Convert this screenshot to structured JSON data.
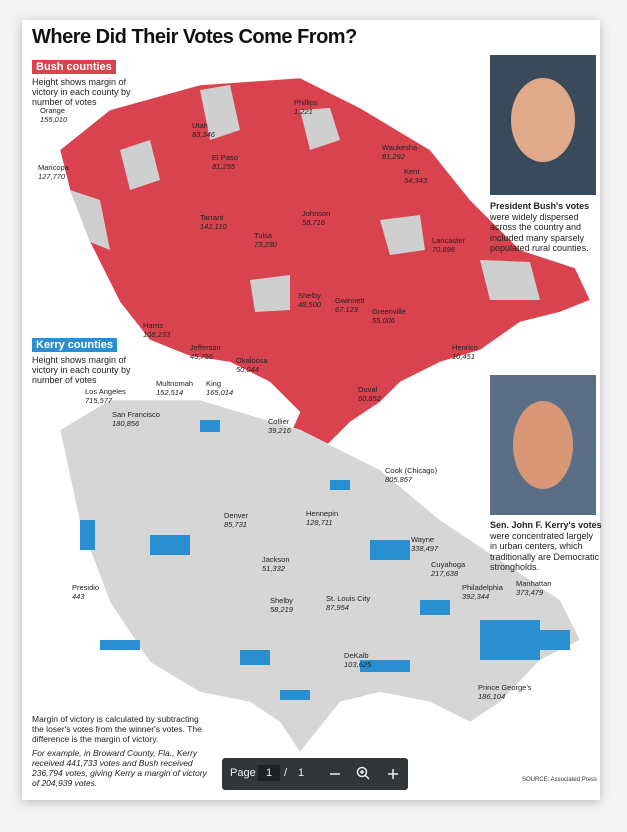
{
  "document": {
    "title": "Where Did Their Votes Come From?",
    "bush": {
      "heading": "Bush counties",
      "description": "Height shows margin of victory in each county by number of votes",
      "labels": [
        {
          "name": "Orange",
          "votes": "155,010"
        },
        {
          "name": "Maricopa",
          "votes": "127,770"
        },
        {
          "name": "Utah",
          "votes": "83,346"
        },
        {
          "name": "El Paso",
          "votes": "81,255"
        },
        {
          "name": "Phillips",
          "votes": "1,221"
        },
        {
          "name": "Waukesha",
          "votes": "81,292"
        },
        {
          "name": "Kent",
          "votes": "54,343"
        },
        {
          "name": "Tarrant",
          "votes": "142,110"
        },
        {
          "name": "Tulsa",
          "votes": "73,230"
        },
        {
          "name": "Johnson",
          "votes": "58,716"
        },
        {
          "name": "Lancaster",
          "votes": "70,896"
        },
        {
          "name": "Harris",
          "votes": "108,233"
        },
        {
          "name": "Shelby",
          "votes": "48,500"
        },
        {
          "name": "Gwinnett",
          "votes": "67,123"
        },
        {
          "name": "Greenville",
          "votes": "55,006"
        },
        {
          "name": "Jefferson",
          "votes": "45,756"
        },
        {
          "name": "Okaloosa",
          "votes": "50,044"
        },
        {
          "name": "Henrico",
          "votes": "10,451"
        },
        {
          "name": "Duval",
          "votes": "60,852"
        },
        {
          "name": "Collier",
          "votes": "39,216"
        }
      ],
      "caption": {
        "bold": "President Bush's votes",
        "text": "were widely dispersed across the country and included many sparsely populated rural counties."
      }
    },
    "kerry": {
      "heading": "Kerry counties",
      "description": "Height shows margin of victory in each county by number of votes",
      "labels": [
        {
          "name": "Los Angeles",
          "votes": "715,577"
        },
        {
          "name": "San Francisco",
          "votes": "180,856"
        },
        {
          "name": "Multnomah",
          "votes": "152,514"
        },
        {
          "name": "King",
          "votes": "165,014"
        },
        {
          "name": "Cook (Chicago)",
          "votes": "805,857"
        },
        {
          "name": "Denver",
          "votes": "85,731"
        },
        {
          "name": "Hennepin",
          "votes": "128,711"
        },
        {
          "name": "Wayne",
          "votes": "338,497"
        },
        {
          "name": "Cuyahoga",
          "votes": "217,638"
        },
        {
          "name": "Jackson",
          "votes": "51,332"
        },
        {
          "name": "Presidio",
          "votes": "443"
        },
        {
          "name": "Shelby",
          "votes": "58,219"
        },
        {
          "name": "St. Louis City",
          "votes": "87,954"
        },
        {
          "name": "Philadelphia",
          "votes": "392,344"
        },
        {
          "name": "Manhattan",
          "votes": "373,479"
        },
        {
          "name": "DeKalb",
          "votes": "103,625"
        },
        {
          "name": "Prince George's",
          "votes": "186,104"
        }
      ],
      "caption": {
        "bold": "Sen. John F. Kerry's votes",
        "text": "were concentrated largely in urban centers, which traditionally are Democratic strongholds."
      }
    },
    "note": {
      "text": "Margin of victory is calculated by subtracting the loser's votes from the winner's votes. The difference is the margin of victory.",
      "example": "For example, in Broward County, Fla., Kerry received 441,733 votes and Bush received 236,794 votes, giving Kerry a margin of victory of 204,939 votes."
    },
    "source": "SOURCE: Associated Press"
  },
  "toolbar": {
    "page_label": "Page",
    "current": "1",
    "separator": "/",
    "total": "1"
  }
}
